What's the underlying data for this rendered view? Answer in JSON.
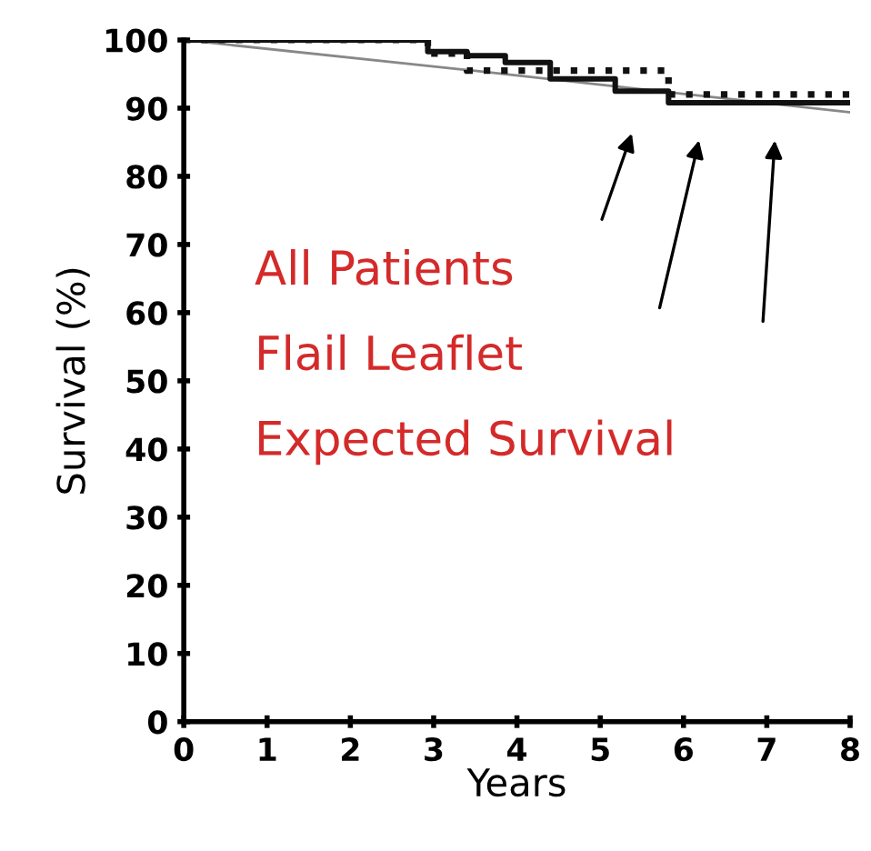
{
  "chart_data": {
    "type": "step",
    "xlabel": "Years",
    "ylabel": "Survival (%)",
    "xlim": [
      0,
      8
    ],
    "ylim": [
      0,
      100
    ],
    "xticks": [
      0,
      1,
      2,
      3,
      4,
      5,
      6,
      7,
      8
    ],
    "yticks": [
      0,
      10,
      20,
      30,
      40,
      50,
      60,
      70,
      80,
      90,
      100
    ],
    "grid": false,
    "legend": false,
    "series": [
      {
        "type": "line",
        "color": "#888888",
        "line_style": "solid",
        "x": [
          0,
          3.4,
          8
        ],
        "values": [
          100,
          95.6,
          89.4
        ]
      },
      {
        "color": "#111111",
        "line_style": "dotted",
        "x": [
          0,
          2.93,
          3.4,
          5.82,
          8
        ],
        "values": [
          100,
          98.0,
          95.5,
          92.0,
          92.0
        ]
      },
      {
        "color": "#111111",
        "line_style": "solid",
        "x": [
          0,
          2.93,
          3.4,
          3.86,
          4.4,
          5.18,
          5.82,
          8
        ],
        "values": [
          100,
          98.3,
          97.7,
          96.7,
          94.3,
          92.5,
          90.8,
          90.8
        ]
      }
    ],
    "annotations": [
      "All Patients",
      "Flail Leaflet",
      "Expected Survival"
    ]
  }
}
